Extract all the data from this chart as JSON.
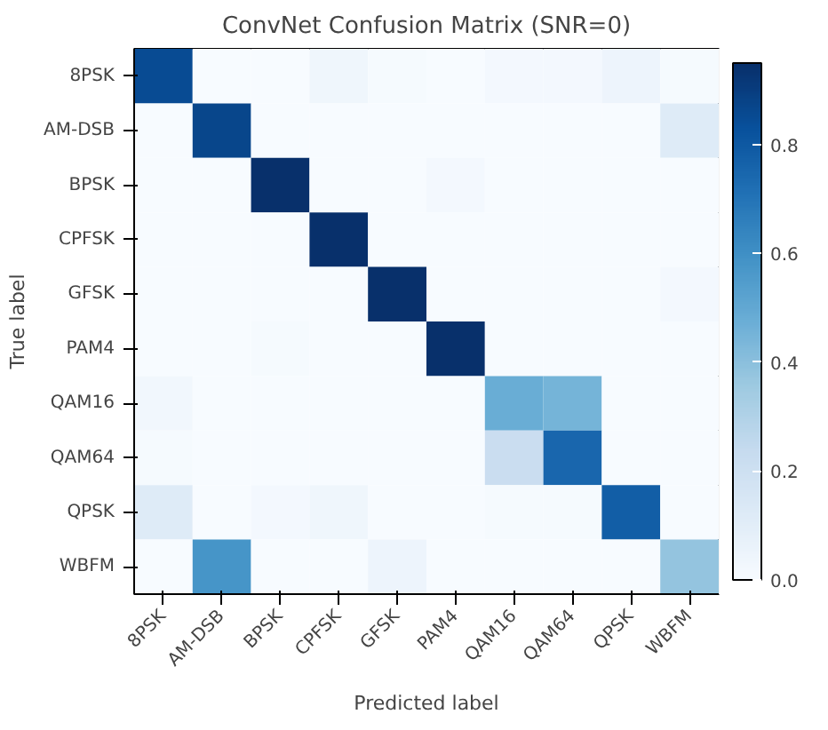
{
  "chart_data": {
    "type": "heatmap",
    "title": "ConvNet Confusion Matrix (SNR=0)",
    "xlabel": "Predicted label",
    "ylabel": "True label",
    "categories": [
      "8PSK",
      "AM-DSB",
      "BPSK",
      "CPFSK",
      "GFSK",
      "PAM4",
      "QAM16",
      "QAM64",
      "QPSK",
      "WBFM"
    ],
    "y_categories": [
      "8PSK",
      "AM-DSB",
      "BPSK",
      "CPFSK",
      "GFSK",
      "PAM4",
      "QAM16",
      "QAM64",
      "QPSK",
      "WBFM"
    ],
    "cells": [
      [
        0.85,
        0,
        0,
        0.04,
        0.01,
        0,
        0.02,
        0.02,
        0.05,
        0.01
      ],
      [
        0,
        0.87,
        0,
        0,
        0,
        0,
        0,
        0,
        0,
        0.12
      ],
      [
        0,
        0,
        0.95,
        0,
        0,
        0.02,
        0,
        0,
        0,
        0
      ],
      [
        0,
        0,
        0,
        0.95,
        0,
        0,
        0,
        0,
        0,
        0
      ],
      [
        0,
        0,
        0,
        0,
        0.95,
        0,
        0,
        0,
        0,
        0.02
      ],
      [
        0,
        0,
        0.01,
        0,
        0,
        0.95,
        0,
        0,
        0,
        0
      ],
      [
        0.03,
        0,
        0,
        0,
        0,
        0,
        0.48,
        0.45,
        0,
        0
      ],
      [
        0.01,
        0,
        0,
        0,
        0,
        0,
        0.22,
        0.75,
        0,
        0
      ],
      [
        0.12,
        0,
        0.02,
        0.04,
        0,
        0,
        0.01,
        0.01,
        0.78,
        0
      ],
      [
        0,
        0.58,
        0,
        0,
        0.05,
        0,
        0,
        0,
        0,
        0.38
      ]
    ],
    "clim": [
      0,
      0.95
    ],
    "cticks": [
      {
        "value": 0,
        "label": "0.0"
      },
      {
        "value": 0.2,
        "label": "0.2"
      },
      {
        "value": 0.4,
        "label": "0.4"
      },
      {
        "value": 0.6,
        "label": "0.6"
      },
      {
        "value": 0.8,
        "label": "0.8"
      }
    ],
    "grid": false
  }
}
